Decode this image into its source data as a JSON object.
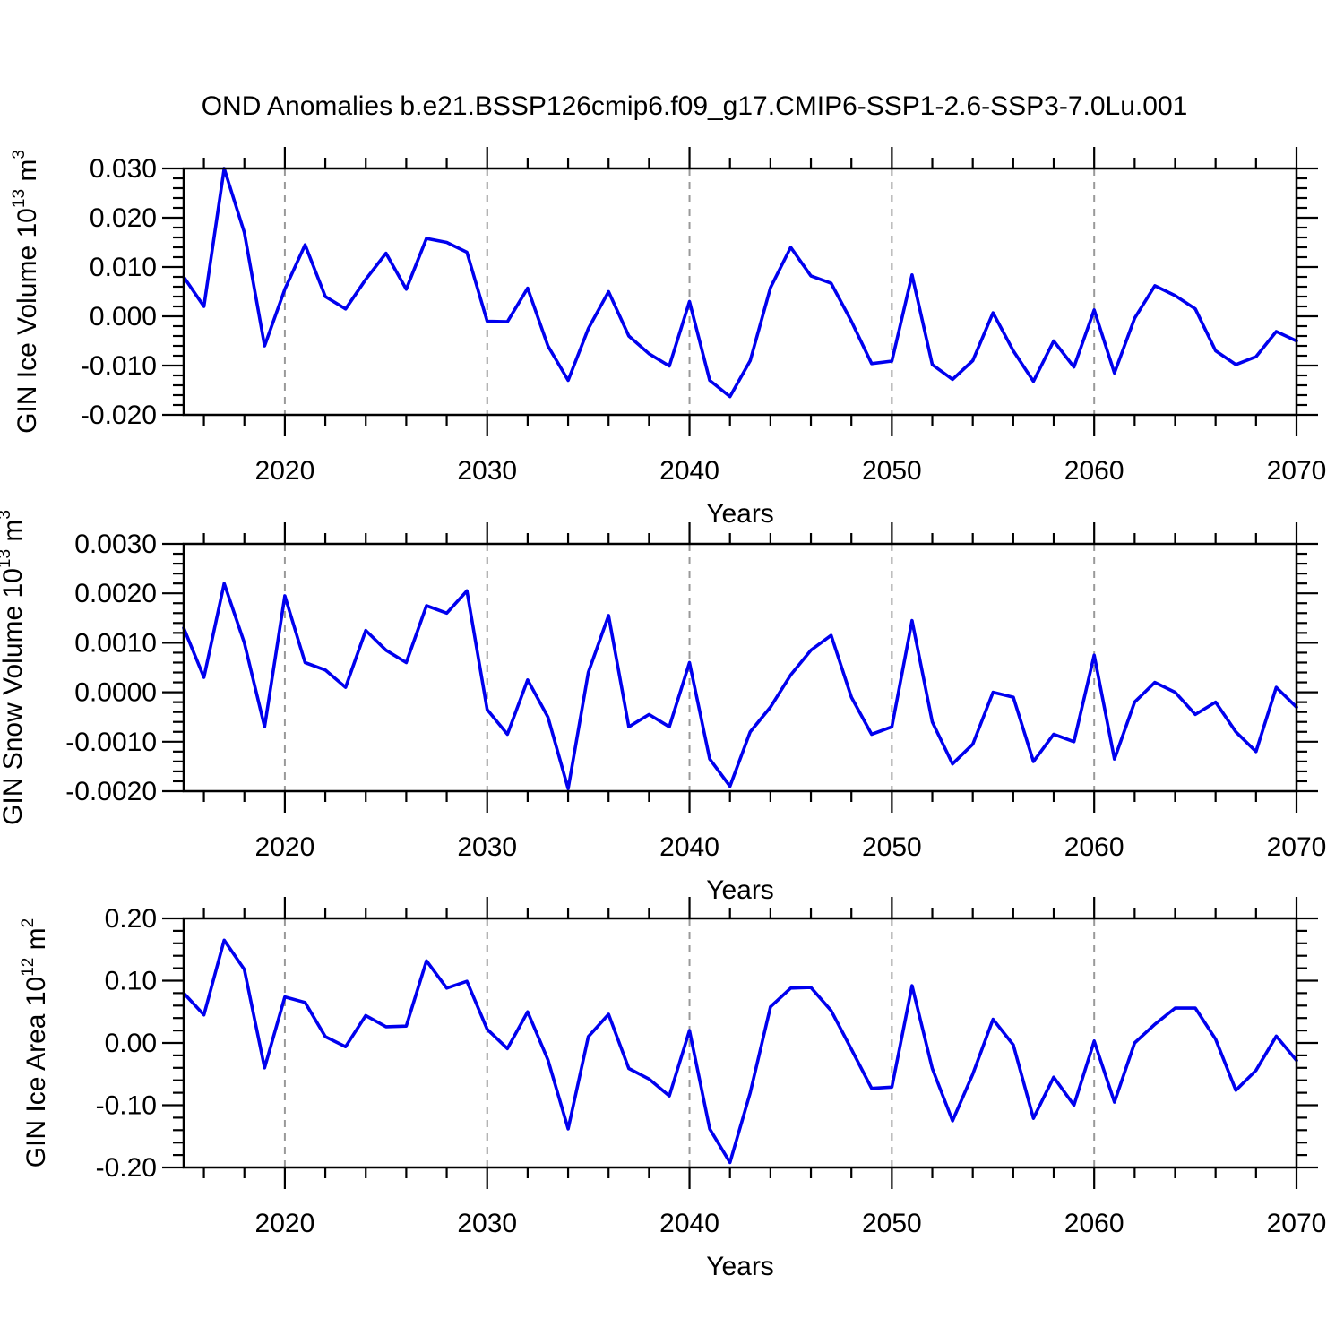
{
  "title": "OND Anomalies b.e21.BSSP126cmip6.f09_g17.CMIP6-SSP1-2.6-SSP3-7.0Lu.001",
  "colors": {
    "line": "#0000EE",
    "grid": "#999999",
    "axis": "#000000",
    "background": "#FFFFFF",
    "text": "#000000"
  },
  "chart_data": [
    {
      "type": "line",
      "name": "gin-ice-volume",
      "ylabel": "GIN Ice Volume 10^13 m^3",
      "ylabel_segments": [
        {
          "text": "GIN Ice Volume 10"
        },
        {
          "sup": "13"
        },
        {
          "text": " m"
        },
        {
          "sup": "3"
        }
      ],
      "xlabel": "Years",
      "xlim": [
        2015,
        2070
      ],
      "ylim": [
        -0.02,
        0.03
      ],
      "grid": "x-dashed-decades",
      "legend": "none",
      "xticks": {
        "values": [
          2020,
          2030,
          2040,
          2050,
          2060,
          2070
        ],
        "labels": [
          "2020",
          "2030",
          "2040",
          "2050",
          "2060",
          "2070"
        ]
      },
      "x_minor_step": 2,
      "yticks": {
        "values": [
          0.03,
          0.02,
          0.01,
          0.0,
          -0.01,
          -0.02
        ],
        "labels": [
          "0.030",
          "0.020",
          "0.010",
          "0.000",
          "-0.010",
          "-0.020"
        ]
      },
      "y_minor_step": 0.002,
      "gridlines_x": [
        2020,
        2030,
        2040,
        2050,
        2060
      ],
      "x": [
        2015,
        2016,
        2017,
        2018,
        2019,
        2020,
        2021,
        2022,
        2023,
        2024,
        2025,
        2026,
        2027,
        2028,
        2029,
        2030,
        2031,
        2032,
        2033,
        2034,
        2035,
        2036,
        2037,
        2038,
        2039,
        2040,
        2041,
        2042,
        2043,
        2044,
        2045,
        2046,
        2047,
        2048,
        2049,
        2050,
        2051,
        2052,
        2053,
        2054,
        2055,
        2056,
        2057,
        2058,
        2059,
        2060,
        2061,
        2062,
        2063,
        2064,
        2065,
        2066,
        2067,
        2068,
        2069,
        2070
      ],
      "values": [
        0.008,
        0.002,
        0.03,
        0.017,
        -0.006,
        0.0055,
        0.0145,
        0.004,
        0.0015,
        0.0075,
        0.0128,
        0.0055,
        0.0158,
        0.015,
        0.013,
        -0.001,
        -0.0011,
        0.0057,
        -0.006,
        -0.013,
        -0.0025,
        0.005,
        -0.004,
        -0.0076,
        -0.0101,
        0.003,
        -0.013,
        -0.0163,
        -0.009,
        0.0058,
        0.014,
        0.0082,
        0.0067,
        -0.001,
        -0.0096,
        -0.0091,
        0.0084,
        -0.0098,
        -0.0128,
        -0.009,
        0.0007,
        -0.007,
        -0.0132,
        -0.005,
        -0.0103,
        0.0013,
        -0.0115,
        -0.0004,
        0.0062,
        0.0042,
        0.0015,
        -0.007,
        -0.0098,
        -0.0082,
        -0.0031,
        -0.005
      ]
    },
    {
      "type": "line",
      "name": "gin-snow-volume",
      "ylabel": "GIN Snow Volume 10^13 m^3",
      "ylabel_segments": [
        {
          "text": "GIN Snow Volume 10"
        },
        {
          "sup": "13"
        },
        {
          "text": " m"
        },
        {
          "sup": "3"
        }
      ],
      "xlabel": "Years",
      "xlim": [
        2015,
        2070
      ],
      "ylim": [
        -0.002,
        0.003
      ],
      "grid": "x-dashed-decades",
      "legend": "none",
      "xticks": {
        "values": [
          2020,
          2030,
          2040,
          2050,
          2060,
          2070
        ],
        "labels": [
          "2020",
          "2030",
          "2040",
          "2050",
          "2060",
          "2070"
        ]
      },
      "x_minor_step": 2,
      "yticks": {
        "values": [
          0.003,
          0.002,
          0.001,
          0.0,
          -0.001,
          -0.002
        ],
        "labels": [
          "0.0030",
          "0.0020",
          "0.0010",
          "0.0000",
          "-0.0010",
          "-0.0020"
        ]
      },
      "y_minor_step": 0.0002,
      "gridlines_x": [
        2020,
        2030,
        2040,
        2050,
        2060
      ],
      "x": [
        2015,
        2016,
        2017,
        2018,
        2019,
        2020,
        2021,
        2022,
        2023,
        2024,
        2025,
        2026,
        2027,
        2028,
        2029,
        2030,
        2031,
        2032,
        2033,
        2034,
        2035,
        2036,
        2037,
        2038,
        2039,
        2040,
        2041,
        2042,
        2043,
        2044,
        2045,
        2046,
        2047,
        2048,
        2049,
        2050,
        2051,
        2052,
        2053,
        2054,
        2055,
        2056,
        2057,
        2058,
        2059,
        2060,
        2061,
        2062,
        2063,
        2064,
        2065,
        2066,
        2067,
        2068,
        2069,
        2070
      ],
      "values": [
        0.0013,
        0.0003,
        0.0022,
        0.001,
        -0.0007,
        0.00195,
        0.0006,
        0.00045,
        0.0001,
        0.00125,
        0.00085,
        0.0006,
        0.00175,
        0.0016,
        0.00205,
        -0.00035,
        -0.00085,
        0.00025,
        -0.0005,
        -0.00195,
        0.0004,
        0.00155,
        -0.0007,
        -0.00045,
        -0.0007,
        0.0006,
        -0.00135,
        -0.0019,
        -0.0008,
        -0.0003,
        0.00035,
        0.00085,
        0.00115,
        -0.0001,
        -0.00085,
        -0.0007,
        0.00145,
        -0.0006,
        -0.00145,
        -0.00105,
        0.0,
        -0.0001,
        -0.0014,
        -0.00085,
        -0.001,
        0.00075,
        -0.00135,
        -0.0002,
        0.0002,
        0.0,
        -0.00045,
        -0.0002,
        -0.0008,
        -0.0012,
        0.0001,
        -0.0003
      ]
    },
    {
      "type": "line",
      "name": "gin-ice-area",
      "ylabel": "GIN Ice Area 10^12 m^2",
      "ylabel_segments": [
        {
          "text": "GIN Ice Area 10"
        },
        {
          "sup": "12"
        },
        {
          "text": " m"
        },
        {
          "sup": "2"
        }
      ],
      "xlabel": "Years",
      "xlim": [
        2015,
        2070
      ],
      "ylim": [
        -0.2,
        0.2
      ],
      "grid": "x-dashed-decades",
      "legend": "none",
      "xticks": {
        "values": [
          2020,
          2030,
          2040,
          2050,
          2060,
          2070
        ],
        "labels": [
          "2020",
          "2030",
          "2040",
          "2050",
          "2060",
          "2070"
        ]
      },
      "x_minor_step": 2,
      "yticks": {
        "values": [
          0.2,
          0.1,
          0.0,
          -0.1,
          -0.2
        ],
        "labels": [
          "0.20",
          "0.10",
          "0.00",
          "-0.10",
          "-0.20"
        ]
      },
      "y_minor_step": 0.02,
      "gridlines_x": [
        2020,
        2030,
        2040,
        2050,
        2060
      ],
      "x": [
        2015,
        2016,
        2017,
        2018,
        2019,
        2020,
        2021,
        2022,
        2023,
        2024,
        2025,
        2026,
        2027,
        2028,
        2029,
        2030,
        2031,
        2032,
        2033,
        2034,
        2035,
        2036,
        2037,
        2038,
        2039,
        2040,
        2041,
        2042,
        2043,
        2044,
        2045,
        2046,
        2047,
        2048,
        2049,
        2050,
        2051,
        2052,
        2053,
        2054,
        2055,
        2056,
        2057,
        2058,
        2059,
        2060,
        2061,
        2062,
        2063,
        2064,
        2065,
        2066,
        2067,
        2068,
        2069,
        2070
      ],
      "values": [
        0.08,
        0.045,
        0.165,
        0.118,
        -0.04,
        0.074,
        0.065,
        0.01,
        -0.006,
        0.044,
        0.026,
        0.027,
        0.132,
        0.088,
        0.099,
        0.022,
        -0.009,
        0.05,
        -0.027,
        -0.138,
        0.01,
        0.046,
        -0.041,
        -0.058,
        -0.085,
        0.02,
        -0.138,
        -0.192,
        -0.08,
        0.058,
        0.088,
        0.089,
        0.052,
        -0.01,
        -0.073,
        -0.071,
        0.092,
        -0.041,
        -0.125,
        -0.05,
        0.038,
        -0.003,
        -0.121,
        -0.055,
        -0.1,
        0.003,
        -0.095,
        0.0,
        0.03,
        0.056,
        0.056,
        0.006,
        -0.076,
        -0.044,
        0.011,
        -0.028
      ]
    }
  ]
}
